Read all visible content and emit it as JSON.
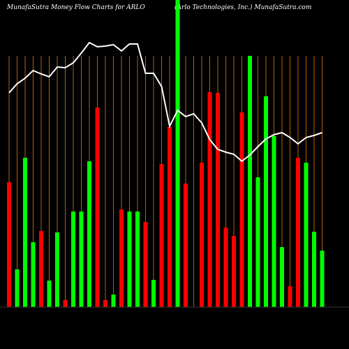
{
  "chart_data": {
    "type": "bar",
    "title": "MunafaSutra  Money Flow  Charts for ARLO",
    "subtitle": "(Arlo  Technologies,  Inc.) MunafaSutra.com",
    "ylim": [
      0,
      440
    ],
    "values": [
      179,
      54,
      214,
      93,
      109,
      38,
      107,
      10,
      137,
      137,
      209,
      286,
      10,
      18,
      140,
      137,
      137,
      122,
      39,
      205,
      258,
      440,
      177,
      null,
      207,
      308,
      307,
      114,
      102,
      279,
      360,
      186,
      302,
      245,
      86,
      30,
      214,
      207,
      108,
      81
    ],
    "colors": [
      "#ff0000",
      "#00ff00",
      "#00ff00",
      "#00ff00",
      "#ff0000",
      "#00ff00",
      "#00ff00",
      "#ff0000",
      "#00ff00",
      "#00ff00",
      "#00ff00",
      "#ff0000",
      "#ff0000",
      "#00ff00",
      "#ff0000",
      "#00ff00",
      "#00ff00",
      "#ff0000",
      "#00ff00",
      "#ff0000",
      "#ff0000",
      "#00ff00",
      "#ff0000",
      null,
      "#ff0000",
      "#ff0000",
      "#ff0000",
      "#ff0000",
      "#ff0000",
      "#ff0000",
      "#00ff00",
      "#00ff00",
      "#00ff00",
      "#00ff00",
      "#00ff00",
      "#ff0000",
      "#ff0000",
      "#00ff00",
      "#00ff00",
      "#00ff00"
    ],
    "line": {
      "color": "#ffffff",
      "values": [
        307,
        320,
        328,
        339,
        334,
        330,
        344,
        343,
        350,
        364,
        379,
        373,
        374,
        376,
        367,
        377,
        377,
        335,
        335,
        316,
        259,
        282,
        273,
        277,
        264,
        240,
        226,
        222,
        219,
        209,
        218,
        230,
        241,
        247,
        250,
        243,
        234,
        243,
        246,
        250
      ]
    },
    "gridline_color": "#b8600b"
  }
}
